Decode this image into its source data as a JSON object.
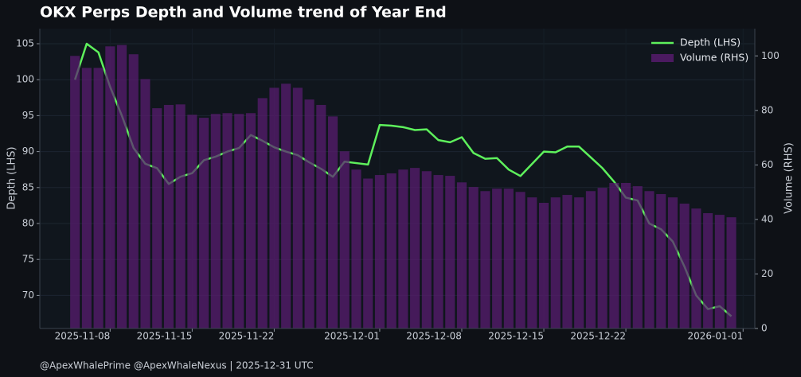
{
  "chart_data": {
    "type": "combo",
    "title": "OKX Perps Depth and Volume trend of Year End",
    "ylabel": "Depth (LHS)",
    "y2label": "Volume (RHS)",
    "footer": "@ApexWhalePrime @ApexWhaleNexus | 2025-12-31 UTC",
    "x": [
      "2025-11-05",
      "2025-11-06",
      "2025-11-07",
      "2025-11-08",
      "2025-11-09",
      "2025-11-10",
      "2025-11-11",
      "2025-11-12",
      "2025-11-13",
      "2025-11-14",
      "2025-11-15",
      "2025-11-16",
      "2025-11-17",
      "2025-11-18",
      "2025-11-19",
      "2025-11-20",
      "2025-11-21",
      "2025-11-22",
      "2025-11-23",
      "2025-11-24",
      "2025-11-25",
      "2025-11-26",
      "2025-11-27",
      "2025-11-28",
      "2025-11-29",
      "2025-11-30",
      "2025-12-01",
      "2025-12-02",
      "2025-12-03",
      "2025-12-04",
      "2025-12-05",
      "2025-12-06",
      "2025-12-07",
      "2025-12-08",
      "2025-12-09",
      "2025-12-10",
      "2025-12-11",
      "2025-12-12",
      "2025-12-13",
      "2025-12-14",
      "2025-12-15",
      "2025-12-16",
      "2025-12-17",
      "2025-12-18",
      "2025-12-19",
      "2025-12-20",
      "2025-12-21",
      "2025-12-22",
      "2025-12-23",
      "2025-12-24",
      "2025-12-25",
      "2025-12-26",
      "2025-12-27",
      "2025-12-28",
      "2025-12-29",
      "2025-12-30",
      "2025-12-31"
    ],
    "xlim": [
      "2025-11-02",
      "2026-01-02"
    ],
    "xticks": [
      "2025-11-08",
      "2025-11-15",
      "2025-11-22",
      "2025-12-01",
      "2025-12-08",
      "2025-12-15",
      "2025-12-22",
      "2026-01-01"
    ],
    "ylim": [
      65.4,
      107.1
    ],
    "yticks": [
      70,
      75,
      80,
      85,
      90,
      95,
      100,
      105
    ],
    "y2lim": [
      0,
      110
    ],
    "y2ticks": [
      0,
      20,
      40,
      60,
      80,
      100
    ],
    "grid": true,
    "legend": "upper right",
    "series": [
      {
        "name": "Depth (LHS)",
        "type": "line",
        "color": "#5ef05c",
        "values": [
          100,
          105,
          103.8,
          99,
          95,
          90.5,
          88.3,
          87.7,
          85.5,
          86.5,
          87,
          88.8,
          89.3,
          90,
          90.5,
          92.3,
          91.5,
          90.6,
          90,
          89.5,
          88.5,
          87.6,
          86.5,
          88.6,
          88.4,
          88.2,
          93.7,
          93.6,
          93.4,
          93,
          93.1,
          91.6,
          91.3,
          92,
          89.8,
          89,
          89.1,
          87.5,
          86.6,
          88.3,
          90,
          89.9,
          90.7,
          90.7,
          89.2,
          87.7,
          85.8,
          83.6,
          83.2,
          80,
          79.2,
          77.5,
          74,
          70,
          68.1,
          68.5,
          67.1
        ]
      },
      {
        "name": "Volume (RHS)",
        "type": "bar",
        "axis": "y2",
        "color": "#5a1c72",
        "values": [
          100,
          95.6,
          95.6,
          103.5,
          104,
          100.6,
          91.5,
          80.8,
          82,
          82.2,
          78.4,
          77.3,
          78.7,
          79,
          78.7,
          79,
          84.5,
          88.3,
          89.8,
          88.3,
          84,
          82,
          77.8,
          65,
          58.3,
          55,
          56.3,
          56.9,
          58.3,
          58.9,
          57.7,
          56.3,
          56,
          53.6,
          51.9,
          50.4,
          51.3,
          51.3,
          50.1,
          48.1,
          46.1,
          48.1,
          49,
          48.1,
          50.4,
          51.6,
          53.4,
          53.4,
          52.2,
          50.4,
          49.3,
          48.1,
          45.8,
          44,
          42.3,
          41.7,
          40.8
        ]
      }
    ]
  }
}
